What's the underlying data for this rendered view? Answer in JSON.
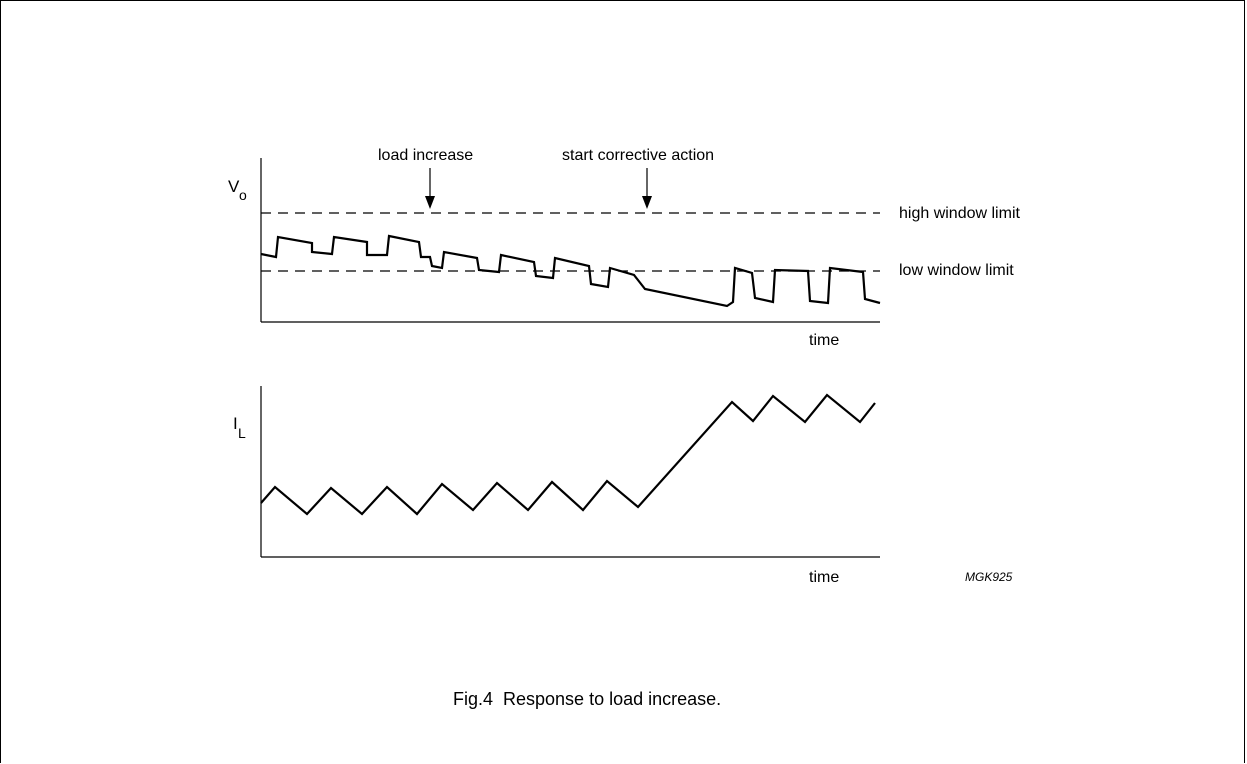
{
  "figure": {
    "caption": "Fig.4  Response to load increase.",
    "code": "MGK925"
  },
  "top_plot": {
    "ylabel_main": "V",
    "ylabel_sub": "o",
    "xlabel": "time",
    "high_limit_label": "high window limit",
    "low_limit_label": "low window limit",
    "annotation_load": "load increase",
    "annotation_action": "start corrective action"
  },
  "bottom_plot": {
    "ylabel_main": "I",
    "ylabel_sub": "L",
    "xlabel": "time"
  }
}
